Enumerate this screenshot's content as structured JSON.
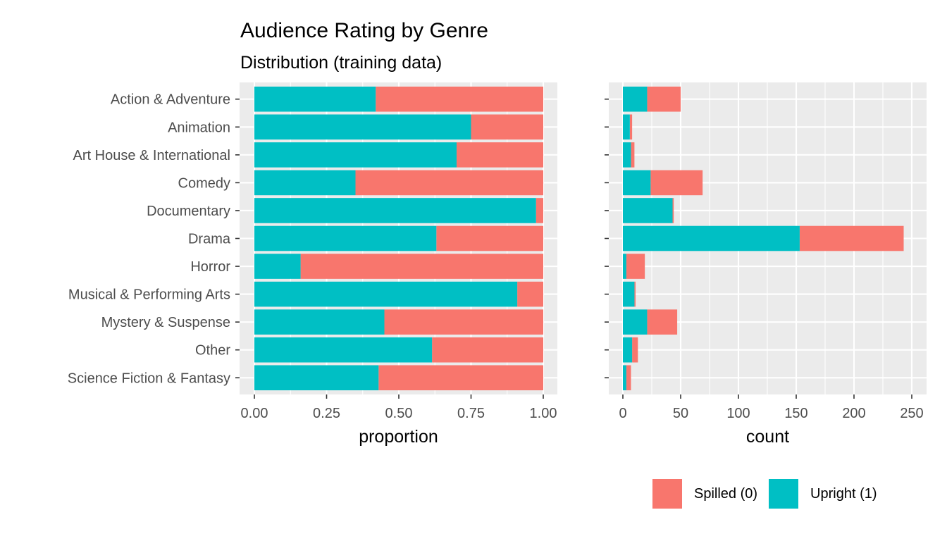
{
  "title": "Audience Rating by Genre",
  "subtitle": "Distribution (training data)",
  "colors": {
    "spilled": "#F8766D",
    "upright": "#00BFC4",
    "panel_bg": "#EBEBEB",
    "grid": "#FFFFFF",
    "axis_text": "#4D4D4D"
  },
  "legend": {
    "items": [
      {
        "key": "spilled",
        "label": "Spilled (0)"
      },
      {
        "key": "upright",
        "label": "Upright (1)"
      }
    ]
  },
  "chart_data": [
    {
      "type": "bar",
      "orientation": "horizontal",
      "stacked": "fill",
      "xlabel": "proportion",
      "xlim": [
        0,
        1
      ],
      "x_ticks": [
        "0.00",
        "0.25",
        "0.50",
        "0.75",
        "1.00"
      ],
      "categories": [
        "Action & Adventure",
        "Animation",
        "Art House & International",
        "Comedy",
        "Documentary",
        "Drama",
        "Horror",
        "Musical & Performing Arts",
        "Mystery & Suspense",
        "Other",
        "Science Fiction & Fantasy"
      ],
      "series": [
        {
          "name": "Upright (1)",
          "key": "upright",
          "values": [
            0.42,
            0.75,
            0.7,
            0.35,
            0.975,
            0.63,
            0.16,
            0.91,
            0.45,
            0.615,
            0.43
          ]
        },
        {
          "name": "Spilled (0)",
          "key": "spilled",
          "values": [
            0.58,
            0.25,
            0.3,
            0.65,
            0.025,
            0.37,
            0.84,
            0.09,
            0.55,
            0.385,
            0.57
          ]
        }
      ]
    },
    {
      "type": "bar",
      "orientation": "horizontal",
      "stacked": "count",
      "xlabel": "count",
      "xlim": [
        0,
        250
      ],
      "x_ticks": [
        "0",
        "50",
        "100",
        "150",
        "200",
        "250"
      ],
      "categories": [
        "Action & Adventure",
        "Animation",
        "Art House & International",
        "Comedy",
        "Documentary",
        "Drama",
        "Horror",
        "Musical & Performing Arts",
        "Mystery & Suspense",
        "Other",
        "Science Fiction & Fantasy"
      ],
      "series": [
        {
          "name": "Upright (1)",
          "key": "upright",
          "values": [
            21,
            6,
            7,
            24,
            43,
            153,
            3,
            10,
            21,
            8,
            3
          ]
        },
        {
          "name": "Spilled (0)",
          "key": "spilled",
          "values": [
            29,
            2,
            3,
            45,
            1,
            90,
            16,
            1,
            26,
            5,
            4
          ]
        }
      ]
    }
  ]
}
